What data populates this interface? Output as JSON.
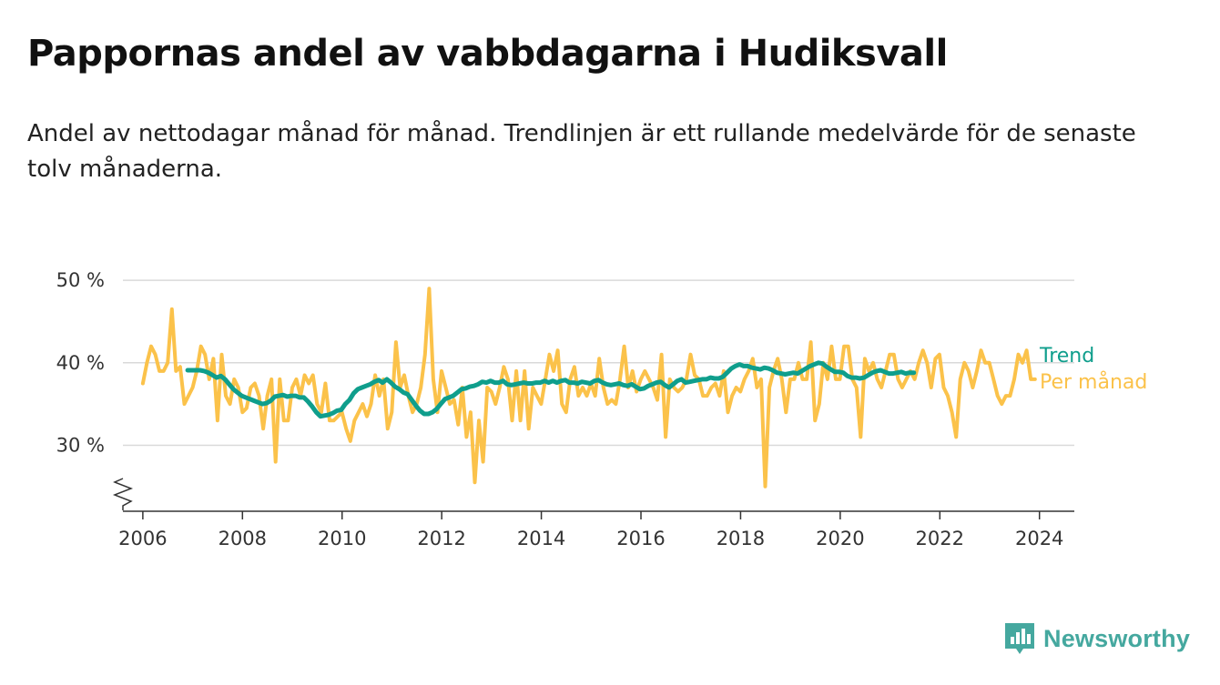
{
  "page": {
    "title": "Pappornas andel av vabbdagarna i Hudiksvall",
    "subtitle": "Andel av nettodagar månad för månad. Trendlinjen är ett rullande medelvärde för de senaste tolv månaderna.",
    "brand": "Newsworthy",
    "brand_icon": "newsworthy-logo-icon"
  },
  "colors": {
    "trend": "#0f9e8c",
    "monthly": "#fbc24a",
    "grid": "#d9d9d9",
    "axis": "#333333",
    "brand": "#45a89f"
  },
  "chart_data": {
    "type": "line",
    "x_unit": "decimal year (monthly values)",
    "xlim": [
      2005.6,
      2024.7
    ],
    "ylim": [
      22,
      52
    ],
    "y_ticks": [
      {
        "value": 30,
        "label": "30 %"
      },
      {
        "value": 40,
        "label": "40 %"
      },
      {
        "value": 50,
        "label": "50 %"
      }
    ],
    "x_ticks": [
      {
        "value": 2006,
        "label": "2006"
      },
      {
        "value": 2008,
        "label": "2008"
      },
      {
        "value": 2010,
        "label": "2010"
      },
      {
        "value": 2012,
        "label": "2012"
      },
      {
        "value": 2014,
        "label": "2014"
      },
      {
        "value": 2016,
        "label": "2016"
      },
      {
        "value": 2018,
        "label": "2018"
      },
      {
        "value": 2020,
        "label": "2020"
      },
      {
        "value": 2022,
        "label": "2022"
      },
      {
        "value": 2024,
        "label": "2024"
      }
    ],
    "grid": true,
    "y_axis_break": true,
    "legend": "direct labels at right end of lines",
    "series": [
      {
        "name": "Per månad",
        "start": 2006.0,
        "step": 0.0833,
        "values": [
          37.5,
          40,
          42,
          41,
          39,
          39,
          40,
          46.5,
          39,
          39.5,
          35,
          36,
          37,
          39,
          42,
          41,
          38,
          40.5,
          33,
          41,
          36,
          35,
          38,
          37,
          34,
          34.5,
          37,
          37.5,
          36,
          32,
          36,
          38,
          28,
          38,
          33,
          33,
          37,
          38,
          36,
          38.5,
          37.5,
          38.5,
          35,
          34,
          37.5,
          33,
          33,
          33.5,
          34,
          32,
          30.5,
          33,
          34,
          35,
          33.5,
          35,
          38.5,
          36,
          38,
          32,
          34,
          42.5,
          37,
          38.5,
          36,
          34,
          35,
          37,
          41,
          49,
          38,
          34,
          39,
          37,
          35,
          35.5,
          32.5,
          37,
          31,
          34,
          25.5,
          33,
          28,
          37,
          36.5,
          35,
          37,
          39.5,
          38,
          33,
          39,
          33,
          39,
          32,
          37,
          36,
          35,
          38,
          41,
          39,
          41.5,
          35,
          34,
          38,
          39.5,
          36,
          37,
          36,
          37.5,
          36,
          40.5,
          37,
          35,
          35.5,
          35,
          38,
          42,
          37,
          39,
          36.5,
          38,
          39,
          38,
          37,
          35.5,
          41,
          31,
          38,
          37,
          36.5,
          37,
          38,
          41,
          38.5,
          38,
          36,
          36,
          37,
          37.5,
          36,
          39,
          34,
          36,
          37,
          36.5,
          38,
          39,
          40.5,
          37,
          38,
          25,
          37,
          39,
          40.5,
          38,
          34,
          38,
          38,
          40,
          38,
          38,
          42.5,
          33,
          35,
          40,
          38,
          42,
          38,
          38,
          42,
          42,
          38,
          37,
          31,
          40.5,
          39,
          40,
          38,
          37,
          39,
          41,
          41,
          38,
          37,
          38,
          39,
          38,
          40,
          41.5,
          40,
          37,
          40.5,
          41,
          37,
          36,
          34,
          31,
          38,
          40,
          39,
          37,
          39,
          41.5,
          40,
          40,
          38,
          36,
          35,
          36,
          36,
          38,
          41,
          40,
          41.5,
          38,
          38
        ]
      },
      {
        "name": "Trend",
        "start": 2006.9,
        "step": 0.0833,
        "values": [
          39.1,
          39.1,
          39.1,
          39.1,
          39.0,
          38.8,
          38.5,
          38.2,
          38.4,
          38.0,
          37.4,
          36.8,
          36.4,
          36.0,
          35.8,
          35.6,
          35.4,
          35.2,
          35.0,
          35.1,
          35.4,
          35.9,
          36.0,
          36.1,
          35.9,
          36.0,
          36.0,
          35.8,
          35.8,
          35.3,
          34.7,
          34.0,
          33.5,
          33.6,
          33.7,
          33.9,
          34.2,
          34.3,
          35.0,
          35.5,
          36.3,
          36.8,
          37.0,
          37.2,
          37.4,
          37.7,
          37.9,
          37.6,
          38.0,
          37.6,
          37.1,
          36.8,
          36.4,
          36.2,
          35.5,
          34.8,
          34.2,
          33.8,
          33.8,
          34.0,
          34.4,
          35.0,
          35.6,
          35.8,
          36.0,
          36.4,
          36.8,
          36.9,
          37.1,
          37.2,
          37.4,
          37.7,
          37.6,
          37.8,
          37.6,
          37.6,
          37.8,
          37.4,
          37.3,
          37.4,
          37.5,
          37.6,
          37.5,
          37.5,
          37.6,
          37.6,
          37.8,
          37.6,
          37.8,
          37.6,
          37.8,
          37.9,
          37.6,
          37.6,
          37.5,
          37.7,
          37.6,
          37.5,
          37.8,
          37.9,
          37.6,
          37.4,
          37.3,
          37.4,
          37.5,
          37.3,
          37.2,
          37.4,
          37.1,
          36.8,
          36.9,
          37.2,
          37.4,
          37.6,
          37.7,
          37.3,
          37.0,
          37.4,
          37.8,
          38.0,
          37.6,
          37.7,
          37.8,
          37.9,
          38.0,
          38.0,
          38.2,
          38.1,
          38.1,
          38.3,
          38.8,
          39.3,
          39.6,
          39.8,
          39.6,
          39.6,
          39.4,
          39.3,
          39.2,
          39.4,
          39.3,
          39.1,
          38.8,
          38.7,
          38.6,
          38.7,
          38.8,
          38.7,
          39.0,
          39.3,
          39.6,
          39.8,
          40.0,
          39.9,
          39.5,
          39.2,
          38.9,
          38.9,
          38.8,
          38.4,
          38.2,
          38.2,
          38.1,
          38.2,
          38.5,
          38.8,
          39.0,
          39.1,
          38.9,
          38.7,
          38.7,
          38.8,
          38.9,
          38.7,
          38.8,
          38.8
        ]
      }
    ]
  }
}
